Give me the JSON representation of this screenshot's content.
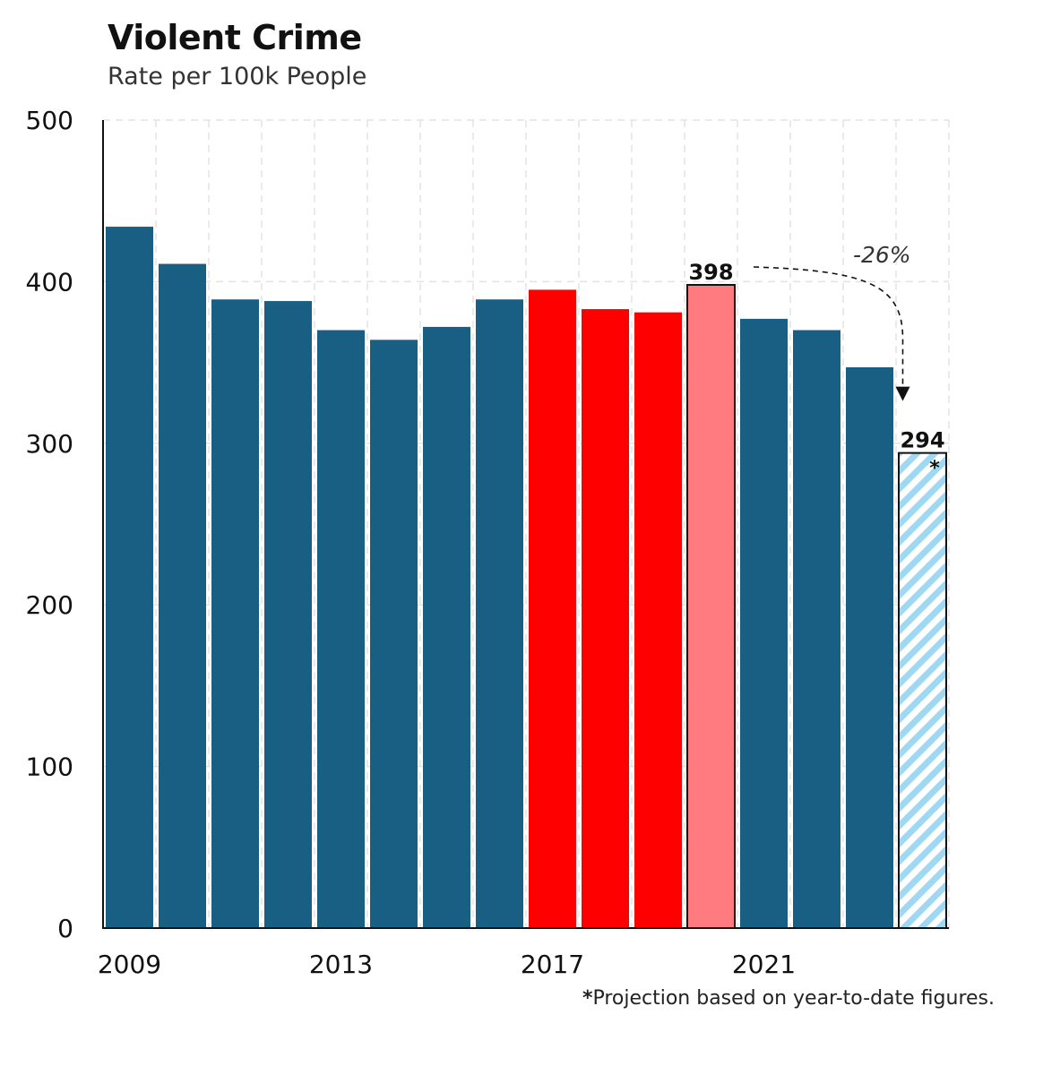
{
  "title": "Violent Crime",
  "subtitle": "Rate per 100k People",
  "footnote": {
    "marker": "*",
    "text": "Projection based on year-to-date figures."
  },
  "colors": {
    "default": "#195e83",
    "highlight": "#ff0000",
    "peak": "#ff7b7f",
    "projection_stripe": "#9ed8f2",
    "gridline": "#e3e3e3"
  },
  "chart_data": {
    "type": "bar",
    "x": [
      2009,
      2010,
      2011,
      2012,
      2013,
      2014,
      2015,
      2016,
      2017,
      2018,
      2019,
      2020,
      2021,
      2022,
      2023,
      2024
    ],
    "values": [
      434,
      411,
      389,
      388,
      370,
      364,
      372,
      389,
      395,
      383,
      381,
      398,
      377,
      370,
      347,
      294
    ],
    "categories_style": [
      "default",
      "default",
      "default",
      "default",
      "default",
      "default",
      "default",
      "default",
      "highlight",
      "highlight",
      "highlight",
      "peak",
      "default",
      "default",
      "default",
      "projection"
    ],
    "xticks": [
      {
        "value": 2009,
        "label": "2009"
      },
      {
        "value": 2013,
        "label": "2013"
      },
      {
        "value": 2017,
        "label": "2017"
      },
      {
        "value": 2021,
        "label": "2021"
      }
    ],
    "yticks": [
      0,
      100,
      200,
      300,
      400,
      500
    ],
    "ylim": [
      0,
      500
    ],
    "grid": true,
    "data_labels": [
      {
        "x": 2020,
        "label": "398"
      },
      {
        "x": 2024,
        "label": "294",
        "marker": "*"
      }
    ],
    "annotation": {
      "from": 2020,
      "to": 2024,
      "label": "-26%"
    }
  }
}
